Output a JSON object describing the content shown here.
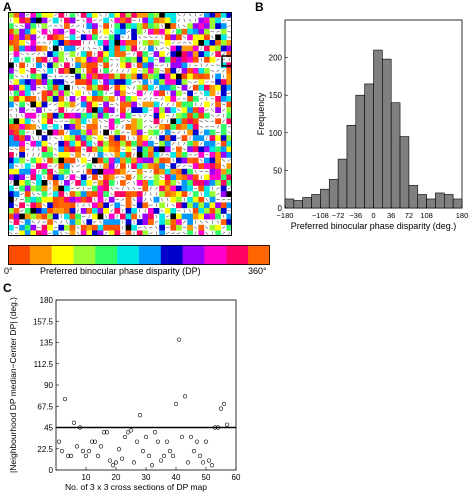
{
  "panels": {
    "a": {
      "letter": "A"
    },
    "b": {
      "letter": "B"
    },
    "c": {
      "letter": "C"
    }
  },
  "colorbar": {
    "label": "Preferred binocular phase disparity (DP)",
    "min_label": "0°",
    "max_label": "360°",
    "colors": [
      "#ff4d00",
      "#ff9900",
      "#ffff00",
      "#99ff33",
      "#33ff66",
      "#00e6e6",
      "#0099ff",
      "#0000cc",
      "#9900ff",
      "#ff00cc",
      "#ff0066",
      "#ff6600"
    ]
  },
  "map": {
    "description_colors": [
      "#ff4d00",
      "#ff9900",
      "#ffff00",
      "#99ff33",
      "#33ff66",
      "#00e6e6",
      "#0099ff",
      "#0000cc",
      "#9900ff",
      "#ff00cc",
      "#ff0066",
      "#ff6600",
      "#ffffff",
      "#000000"
    ]
  },
  "chart_data": [
    {
      "type": "bar",
      "xlabel": "Preferred binocular phase disparity (deg.)",
      "ylabel": "Frequency",
      "xlim": [
        -180,
        180
      ],
      "ylim": [
        0,
        250
      ],
      "xticks": [
        -180,
        -108,
        -72,
        -36,
        0,
        36,
        72,
        108,
        180
      ],
      "xtick_labels": [
        "−180",
        "−108",
        "−72",
        "−36",
        "0",
        "36",
        "72",
        "108",
        "180"
      ],
      "yticks": [
        0,
        50,
        100,
        150,
        200
      ],
      "bin_width": 18,
      "bin_starts": [
        -180,
        -162,
        -144,
        -126,
        -108,
        -90,
        -72,
        -54,
        -36,
        -18,
        0,
        18,
        36,
        54,
        72,
        90,
        108,
        126,
        144,
        162
      ],
      "values": [
        12,
        10,
        14,
        18,
        25,
        38,
        65,
        110,
        150,
        165,
        210,
        198,
        140,
        95,
        30,
        18,
        12,
        20,
        18,
        12
      ],
      "bar_color": "#808080"
    },
    {
      "type": "scatter",
      "xlabel": "No. of 3 x 3 cross sections of DP map",
      "ylabel": "|Neighbourhood DP median−Center DP| (deg.)",
      "xlim": [
        0,
        60
      ],
      "ylim": [
        0,
        180
      ],
      "xticks": [
        10,
        20,
        30,
        40,
        50,
        60
      ],
      "yticks": [
        0,
        22.5,
        45,
        67.5,
        90,
        112.5,
        135,
        157.5,
        180
      ],
      "ytick_labels": [
        "0",
        "22.5",
        "45",
        "67.5",
        "90",
        "112.5",
        "135",
        "157.5",
        "180"
      ],
      "reference_line_y": 45,
      "x": [
        1,
        2,
        3,
        4,
        5,
        6,
        7,
        8,
        9,
        10,
        11,
        12,
        13,
        14,
        15,
        16,
        17,
        18,
        19,
        20,
        21,
        22,
        23,
        24,
        25,
        26,
        27,
        28,
        29,
        30,
        31,
        32,
        33,
        34,
        35,
        36,
        37,
        38,
        39,
        40,
        41,
        42,
        43,
        44,
        45,
        46,
        47,
        48,
        49,
        50,
        51,
        52,
        53,
        54,
        55,
        56,
        57
      ],
      "y": [
        30,
        20,
        75,
        15,
        15,
        50,
        25,
        45,
        20,
        15,
        20,
        30,
        30,
        15,
        25,
        40,
        40,
        10,
        5,
        8,
        22,
        12,
        35,
        40,
        42,
        8,
        30,
        58,
        20,
        35,
        15,
        5,
        40,
        30,
        10,
        15,
        30,
        20,
        15,
        70,
        138,
        35,
        78,
        8,
        35,
        20,
        30,
        15,
        8,
        30,
        10,
        5,
        45,
        45,
        65,
        70,
        48
      ]
    }
  ]
}
